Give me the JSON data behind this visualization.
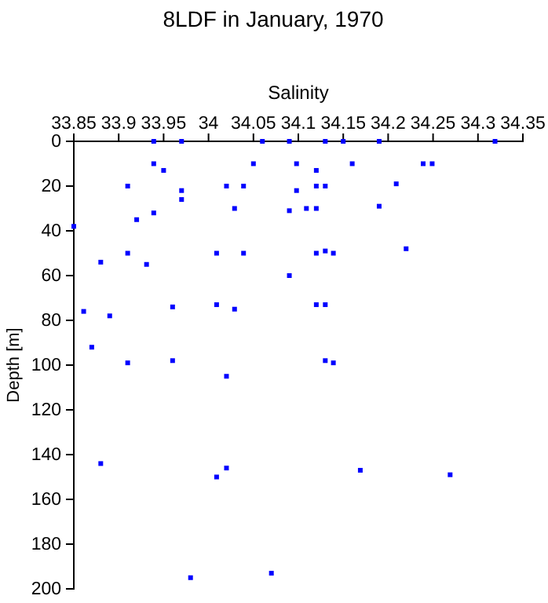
{
  "chart_data": {
    "type": "scatter",
    "title": "8LDF in January, 1970",
    "xlabel": "Salinity",
    "ylabel": "Depth [m]",
    "marker": "square",
    "grid": false,
    "xlim": [
      33.85,
      34.35
    ],
    "xticks": [
      33.85,
      33.9,
      33.95,
      34,
      34.05,
      34.1,
      34.15,
      34.2,
      34.25,
      34.3,
      34.35
    ],
    "ylim": [
      200,
      0
    ],
    "yticks": [
      0,
      20,
      40,
      60,
      80,
      100,
      120,
      140,
      160,
      180,
      200
    ],
    "series": [
      {
        "color": "#0000ff",
        "x": [
          33.939,
          33.97,
          34.06,
          34.09,
          33.939,
          33.95,
          34.05,
          34.098,
          33.91,
          33.97,
          33.97,
          34.02,
          34.039,
          34.098,
          34.029,
          33.92,
          33.939,
          34.09,
          33.85,
          33.91,
          34.009,
          34.039,
          33.88,
          33.931,
          34.09,
          34.13,
          34.15,
          34.19,
          34.319,
          34.16,
          34.239,
          34.249,
          34.12,
          34.209,
          34.12,
          34.13,
          34.109,
          34.12,
          34.19,
          34.12,
          34.13,
          34.139,
          34.22,
          33.861,
          33.89,
          33.96,
          34.009,
          34.029,
          33.87,
          33.91,
          33.96,
          34.02,
          33.88,
          34.009,
          34.02,
          33.98,
          34.07,
          34.12,
          34.13,
          34.13,
          34.139,
          34.169,
          34.269
        ],
        "values": [
          0,
          0,
          0,
          0,
          10,
          13,
          10,
          10,
          20,
          22,
          26,
          20,
          20,
          22,
          30,
          35,
          32,
          31,
          38,
          50,
          50,
          50,
          54,
          55,
          60,
          0,
          0,
          0,
          0,
          10,
          10,
          10,
          13,
          19,
          20,
          20,
          30,
          30,
          29,
          50,
          49,
          50,
          48,
          76,
          78,
          74,
          73,
          75,
          92,
          99,
          98,
          105,
          144,
          150,
          146,
          195,
          193,
          73,
          73,
          98,
          99,
          147,
          149
        ]
      }
    ]
  }
}
